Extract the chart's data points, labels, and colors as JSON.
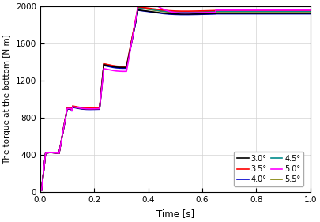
{
  "title": "",
  "xlabel": "Time [s]",
  "ylabel": "The torque at the bottom [N·m]",
  "xlim": [
    0,
    1.0
  ],
  "ylim": [
    0,
    2000
  ],
  "xticks": [
    0.0,
    0.2,
    0.4,
    0.6,
    0.8,
    1.0
  ],
  "yticks": [
    0,
    400,
    800,
    1200,
    1600,
    2000
  ],
  "legend_entries": [
    "3.0°",
    "3.5°",
    "4.0°",
    "4.5°",
    "5.0°",
    "5.5°"
  ],
  "line_colors": [
    "#000000",
    "#ff0000",
    "#0000cd",
    "#008b8b",
    "#ff00ff",
    "#808000"
  ],
  "background_color": "#ffffff",
  "grid_color": "#d3d3d3",
  "final_vals": [
    1930,
    1960,
    1920,
    1945,
    1955,
    1935
  ],
  "step1_vals": [
    900,
    910,
    895,
    905,
    900,
    900
  ],
  "step2_vals": [
    1350,
    1360,
    1340,
    1355,
    1305,
    1345
  ],
  "angles": [
    3.0,
    3.5,
    4.0,
    4.5,
    5.0,
    5.5
  ]
}
